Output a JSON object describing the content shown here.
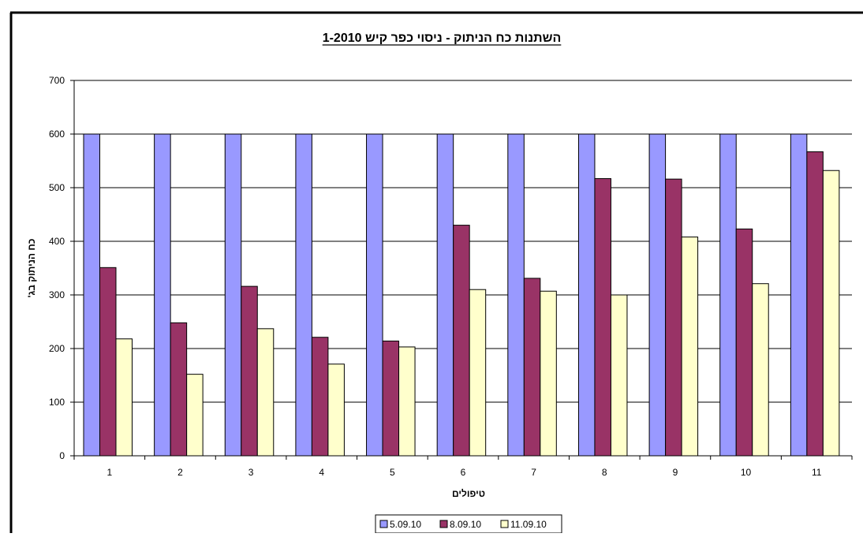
{
  "chart_data": {
    "type": "bar",
    "title": "השתנות כח הניתוק - ניסוי כפר קיש 1-2010",
    "xlabel": "טיפולים",
    "ylabel": "כח הניתוק בג'",
    "categories": [
      "1",
      "2",
      "3",
      "4",
      "5",
      "6",
      "7",
      "8",
      "9",
      "10",
      "11"
    ],
    "ylim": [
      0,
      700
    ],
    "yticks": [
      "0",
      "100",
      "200",
      "300",
      "400",
      "500",
      "600",
      "700"
    ],
    "grid": true,
    "legend_position": "bottom",
    "series": [
      {
        "name": "5.09.10",
        "color": "#9999ff",
        "values": [
          600,
          600,
          600,
          600,
          600,
          600,
          600,
          600,
          600,
          600,
          600
        ]
      },
      {
        "name": "8.09.10",
        "color": "#993366",
        "values": [
          351,
          248,
          316,
          221,
          214,
          430,
          331,
          517,
          516,
          423,
          567
        ]
      },
      {
        "name": "11.09.10",
        "color": "#ffffcc",
        "values": [
          218,
          152,
          237,
          171,
          203,
          310,
          307,
          300,
          408,
          321,
          532
        ]
      }
    ]
  }
}
